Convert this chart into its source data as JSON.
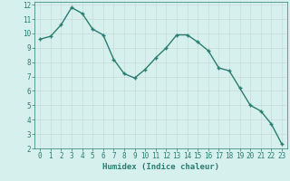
{
  "x": [
    0,
    1,
    2,
    3,
    4,
    5,
    6,
    7,
    8,
    9,
    10,
    11,
    12,
    13,
    14,
    15,
    16,
    17,
    18,
    19,
    20,
    21,
    22,
    23
  ],
  "y": [
    9.6,
    9.8,
    10.6,
    11.8,
    11.4,
    10.3,
    9.9,
    8.2,
    7.2,
    6.9,
    7.5,
    8.3,
    9.0,
    9.9,
    9.9,
    9.4,
    8.8,
    7.6,
    7.4,
    6.2,
    5.0,
    4.6,
    3.7,
    2.3
  ],
  "line_color": "#2a7d6f",
  "marker": "+",
  "marker_size": 3,
  "bg_color": "#d6f0ee",
  "grid_color": "#c8dbd8",
  "xlabel": "Humidex (Indice chaleur)",
  "xlim": [
    -0.5,
    23.5
  ],
  "ylim": [
    2,
    12.2
  ],
  "yticks": [
    2,
    3,
    4,
    5,
    6,
    7,
    8,
    9,
    10,
    11,
    12
  ],
  "xticks": [
    0,
    1,
    2,
    3,
    4,
    5,
    6,
    7,
    8,
    9,
    10,
    11,
    12,
    13,
    14,
    15,
    16,
    17,
    18,
    19,
    20,
    21,
    22,
    23
  ],
  "tick_color": "#2a7d6f",
  "tick_fontsize": 5.5,
  "xlabel_fontsize": 6.5,
  "linewidth": 1.0,
  "marker_linewidth": 1.0
}
